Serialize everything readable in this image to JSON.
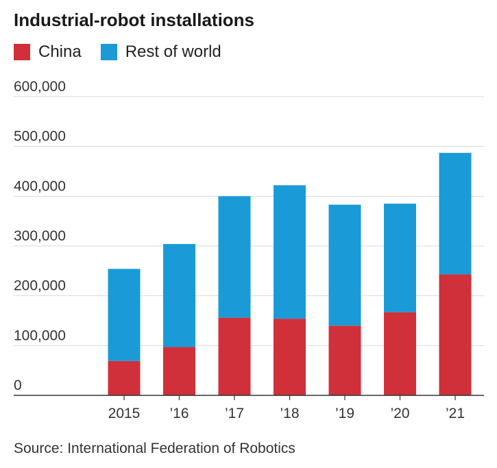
{
  "chart_data": {
    "type": "bar",
    "stacked": true,
    "title": "Industrial-robot installations",
    "categories": [
      "2015",
      "’16",
      "’17",
      "’18",
      "’19",
      "’20",
      "’21"
    ],
    "series": [
      {
        "name": "China",
        "color": "#d0303a",
        "values": [
          69000,
          97000,
          156000,
          154000,
          140000,
          167000,
          243000
        ]
      },
      {
        "name": "Rest of world",
        "color": "#1a9bd7",
        "values": [
          185000,
          207000,
          244000,
          268000,
          243000,
          218000,
          244000
        ]
      }
    ],
    "yticks": [
      "0",
      "100,000",
      "200,000",
      "300,000",
      "400,000",
      "500,000",
      "600,000"
    ],
    "ylim": [
      0,
      600000
    ],
    "grid": true,
    "legend": "top-left",
    "source": "Source: International Federation of Robotics"
  }
}
